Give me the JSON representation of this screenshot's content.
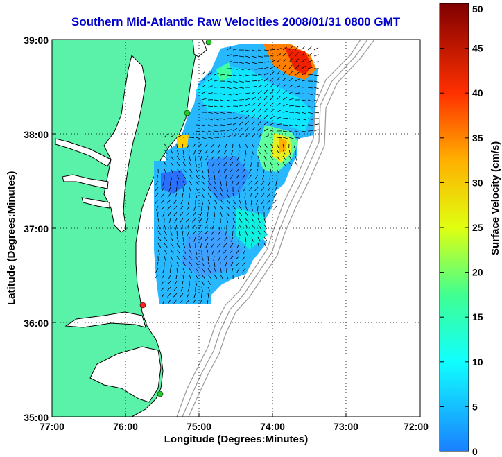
{
  "title": "Southern Mid-Atlantic Raw Velocities 2008/01/31 0800 GMT",
  "xlabel": "Longitude (Degrees:Minutes)",
  "ylabel": "Latitude (Degrees:Minutes)",
  "colorbar": {
    "label": "Surface Velocity (cm/s)",
    "ticks": [
      "0",
      "5",
      "10",
      "15",
      "20",
      "25",
      "30",
      "35",
      "40",
      "45",
      "50"
    ],
    "range": [
      0,
      50
    ]
  },
  "axes": {
    "x_ticks": [
      "77:00",
      "76:00",
      "75:00",
      "74:00",
      "73:00",
      "72:00"
    ],
    "y_ticks": [
      "39:00",
      "38:00",
      "37:00",
      "36:00",
      "35:00"
    ],
    "x_range": [
      -77,
      -72
    ],
    "y_range": [
      35,
      39
    ],
    "grid": true
  },
  "colors": {
    "land": "#5af2a8",
    "water": "#ffffff",
    "title": "#0000cc",
    "station_green": "#22cc22",
    "station_red": "#ff2222",
    "bathymetry": "#999999"
  },
  "stations": [
    {
      "lon": -74.98,
      "lat": 38.98,
      "color": "green"
    },
    {
      "lon": -75.14,
      "lat": 38.22,
      "color": "green"
    },
    {
      "lon": -75.65,
      "lat": 36.18,
      "color": "red"
    },
    {
      "lon": -75.53,
      "lat": 35.25,
      "color": "green"
    }
  ]
}
